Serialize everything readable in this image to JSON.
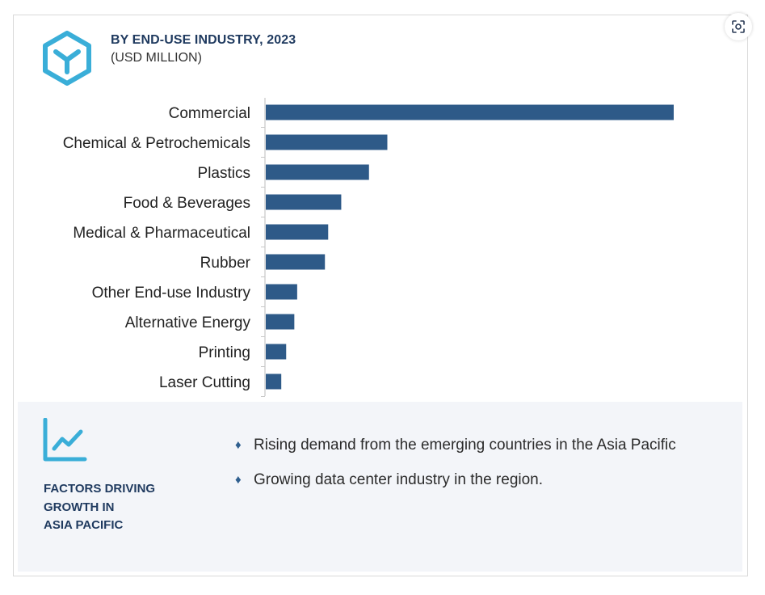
{
  "header": {
    "title": "BY END-USE INDUSTRY, 2023",
    "subtitle": "(USD MILLION)",
    "logo_icon": "hexagon-y-logo-icon"
  },
  "toolbar": {
    "lens_icon": "visual-search-icon"
  },
  "colors": {
    "bar": "#2e5a88",
    "title": "#1f3a5f",
    "accent": "#3aaed8",
    "panel_bg": "#f3f5f9"
  },
  "chart_data": {
    "type": "bar",
    "orientation": "horizontal",
    "title": "BY END-USE INDUSTRY, 2023",
    "subtitle": "(USD MILLION)",
    "categories": [
      "Commercial",
      "Chemical & Petrochemicals",
      "Plastics",
      "Food & Beverages",
      "Medical & Pharmaceutical",
      "Rubber",
      "Other End-use Industry",
      "Alternative Energy",
      "Printing",
      "Laser Cutting"
    ],
    "values": [
      100,
      29.8,
      25.3,
      18.5,
      15.3,
      14.5,
      7.7,
      7.0,
      5.0,
      3.8
    ],
    "xlim": [
      0,
      100
    ],
    "grid": false,
    "legend": "none",
    "value_axis_labels": "none"
  },
  "factors": {
    "icon": "growth-chart-icon",
    "title_lines": [
      "FACTORS DRIVING",
      "GROWTH IN",
      "ASIA PACIFIC"
    ],
    "items": [
      "Rising demand from the emerging countries in the Asia Pacific",
      "Growing data center industry in the region."
    ],
    "bullet": "♦"
  }
}
